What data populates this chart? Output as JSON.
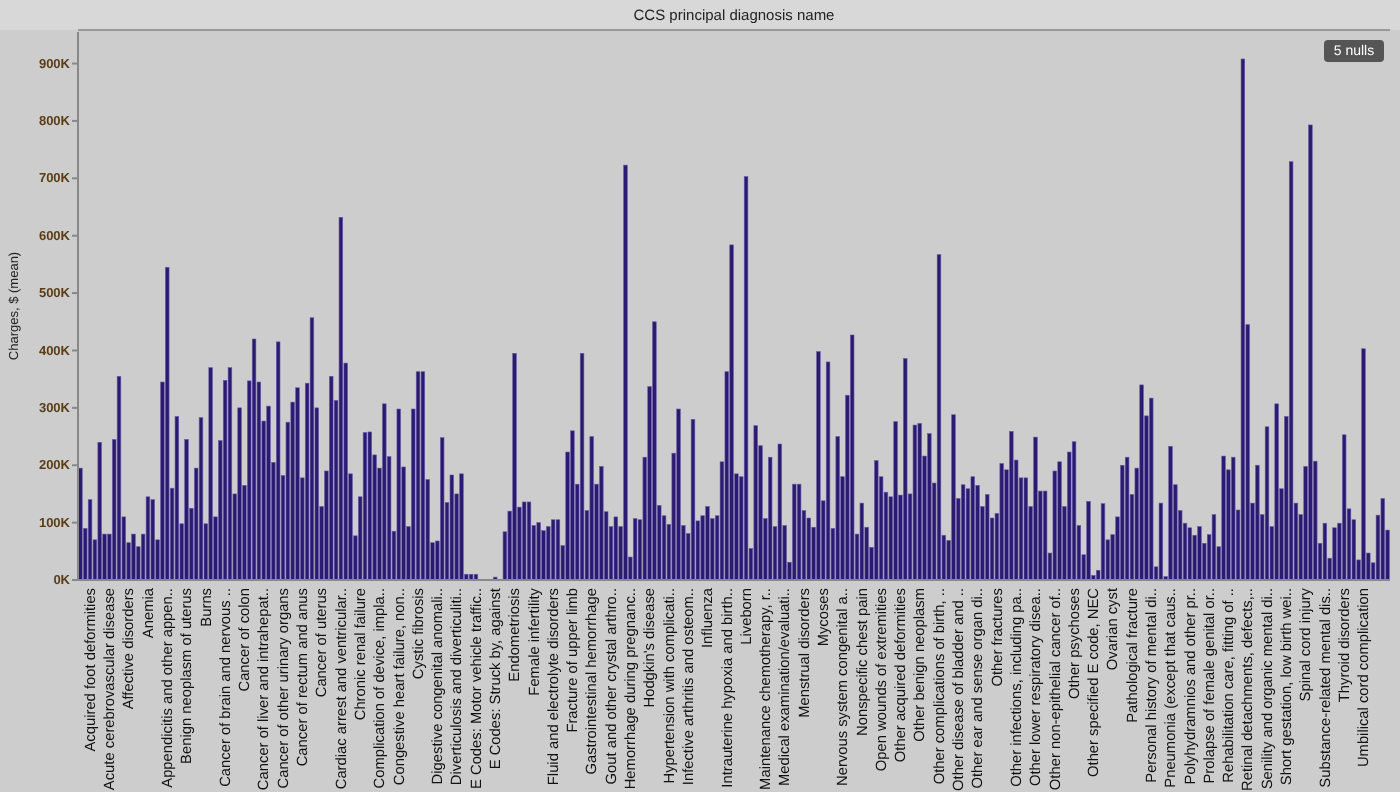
{
  "chart_data": {
    "type": "bar",
    "title": "CCS principal diagnosis name",
    "ylabel": "Charges, $ (mean)",
    "color": "#2b1a72",
    "grid": false,
    "ylim": [
      0,
      955000
    ],
    "yticks": [
      {
        "value": 0,
        "label": "0K"
      },
      {
        "value": 100000,
        "label": "100K"
      },
      {
        "value": 200000,
        "label": "200K"
      },
      {
        "value": 300000,
        "label": "300K"
      },
      {
        "value": 400000,
        "label": "400K"
      },
      {
        "value": 500000,
        "label": "500K"
      },
      {
        "value": 600000,
        "label": "600K"
      },
      {
        "value": 700000,
        "label": "700K"
      },
      {
        "value": 800000,
        "label": "800K"
      },
      {
        "value": 900000,
        "label": "900K"
      }
    ],
    "annotations": [
      "5 nulls"
    ],
    "categories": [
      null,
      null,
      "Acquired foot deformities",
      null,
      null,
      null,
      "Acute cerebrovascular disease",
      null,
      null,
      null,
      "Affective disorders",
      null,
      null,
      null,
      "Anemia",
      null,
      null,
      null,
      "Appendicitis and other appen..",
      null,
      null,
      null,
      "Benign neoplasm of uterus",
      null,
      null,
      null,
      "Burns",
      null,
      null,
      null,
      "Cancer of brain and nervous ..",
      null,
      null,
      null,
      "Cancer of colon",
      null,
      null,
      null,
      "Cancer of liver and intrahepat..",
      null,
      null,
      null,
      "Cancer of other urinary organs",
      null,
      null,
      null,
      "Cancer of rectum and anus",
      null,
      null,
      null,
      "Cancer of uterus",
      null,
      null,
      null,
      "Cardiac arrest and ventricular..",
      null,
      null,
      null,
      "Chronic renal failure",
      null,
      null,
      null,
      "Complication of device, impla..",
      null,
      null,
      null,
      "Congestive heart failure, non..",
      null,
      null,
      null,
      "Cystic fibrosis",
      null,
      null,
      null,
      "Digestive congenital anomali..",
      null,
      null,
      null,
      "Diverticulosis and diverticuliti..",
      null,
      null,
      null,
      "E Codes: Motor vehicle traffic..",
      null,
      null,
      null,
      "E Codes: Struck by, against",
      null,
      null,
      null,
      "Endometriosis",
      null,
      null,
      null,
      "Female infertility",
      null,
      null,
      null,
      "Fluid and electrolyte disorders",
      null,
      null,
      null,
      "Fracture of upper limb",
      null,
      null,
      null,
      "Gastrointestinal hemorrhage",
      null,
      null,
      null,
      "Gout and other crystal arthro..",
      null,
      null,
      null,
      "Hemorrhage during pregnanc..",
      null,
      null,
      null,
      "Hodgkin's disease",
      null,
      null,
      null,
      "Hypertension with complicati..",
      null,
      null,
      null,
      "Infective arthritis and osteom..",
      null,
      null,
      null,
      "Influenza",
      null,
      null,
      null,
      "Intrauterine hypoxia and birth..",
      null,
      null,
      null,
      "Liveborn",
      null,
      null,
      null,
      "Maintenance chemotherapy, r..",
      null,
      null,
      null,
      "Medical examination/evaluati..",
      null,
      null,
      null,
      "Menstrual disorders",
      null,
      null,
      null,
      "Mycoses",
      null,
      null,
      null,
      "Nervous system congenital a..",
      null,
      null,
      null,
      "Nonspecific chest pain",
      null,
      null,
      null,
      "Open wounds of extremities",
      null,
      null,
      null,
      "Other acquired deformities",
      null,
      null,
      null,
      "Other benign neoplasm",
      null,
      null,
      null,
      "Other complications of birth, ..",
      null,
      null,
      null,
      "Other disease of bladder and ..",
      null,
      null,
      null,
      "Other ear and sense organ di..",
      null,
      null,
      null,
      "Other fractures",
      null,
      null,
      null,
      "Other infections, including pa..",
      null,
      null,
      null,
      "Other lower respiratory disea..",
      null,
      null,
      null,
      "Other non-epithelial cancer of..",
      null,
      null,
      null,
      "Other psychoses",
      null,
      null,
      null,
      "Other specified E code, NEC",
      null,
      null,
      null,
      "Ovarian cyst",
      null,
      null,
      null,
      "Pathological fracture",
      null,
      null,
      null,
      "Personal history of mental di..",
      null,
      null,
      null,
      "Pneumonia (except that caus..",
      null,
      null,
      null,
      "Polyhydramnios and other pr..",
      null,
      null,
      null,
      "Prolapse of female genital or..",
      null,
      null,
      null,
      "Rehabilitation care, fitting of ..",
      null,
      null,
      null,
      "Retinal detachments, defects,..",
      null,
      null,
      null,
      "Senility and organic mental di..",
      null,
      null,
      null,
      "Short gestation, low birth wei..",
      null,
      null,
      null,
      "Spinal cord injury",
      null,
      null,
      null,
      "Substance-related mental dis..",
      null,
      null,
      null,
      "Thyroid disorders",
      null,
      null,
      null,
      "Umbilical cord complication",
      null,
      null,
      null,
      null,
      null
    ],
    "values": [
      195000,
      90000,
      140000,
      70000,
      240000,
      80000,
      80000,
      245000,
      355000,
      110000,
      65000,
      80000,
      58000,
      80000,
      145000,
      140000,
      70000,
      345000,
      545000,
      160000,
      285000,
      98000,
      245000,
      125000,
      195000,
      283000,
      98000,
      370000,
      110000,
      243000,
      348000,
      370000,
      150000,
      300000,
      165000,
      347000,
      420000,
      345000,
      277000,
      303000,
      205000,
      415000,
      182000,
      275000,
      310000,
      335000,
      178000,
      343000,
      457000,
      300000,
      128000,
      190000,
      355000,
      313000,
      632000,
      378000,
      185000,
      77000,
      145000,
      257000,
      258000,
      218000,
      195000,
      307000,
      215000,
      85000,
      298000,
      197000,
      93000,
      298000,
      363000,
      363000,
      175000,
      65000,
      68000,
      248000,
      135000,
      183000,
      150000,
      185000,
      10000,
      10000,
      10000,
      null,
      null,
      null,
      5000,
      null,
      84000,
      120000,
      395000,
      127000,
      136000,
      136000,
      95000,
      100000,
      86000,
      93000,
      105000,
      105000,
      60000,
      223000,
      260000,
      167000,
      395000,
      121000,
      250000,
      167000,
      198000,
      119000,
      93000,
      110000,
      93000,
      723000,
      40000,
      107000,
      105000,
      214000,
      337000,
      450000,
      130000,
      112000,
      97000,
      221000,
      298000,
      95000,
      81000,
      280000,
      103000,
      112000,
      128000,
      107000,
      112000,
      206000,
      363000,
      584000,
      185000,
      180000,
      703000,
      55000,
      269000,
      234000,
      107000,
      214000,
      93000,
      237000,
      95000,
      31000,
      167000,
      167000,
      121000,
      108000,
      92000,
      398000,
      138000,
      380000,
      90000,
      250000,
      180000,
      322000,
      427000,
      80000,
      134000,
      92000,
      57000,
      208000,
      180000,
      153000,
      145000,
      276000,
      148000,
      386000,
      150000,
      270000,
      273000,
      216000,
      255000,
      169000,
      567000,
      78000,
      69000,
      288000,
      142000,
      166000,
      159000,
      180000,
      165000,
      128000,
      149000,
      108000,
      116000,
      203000,
      192000,
      259000,
      209000,
      178000,
      178000,
      128000,
      249000,
      155000,
      155000,
      47000,
      190000,
      206000,
      128000,
      223000,
      241000,
      95000,
      44000,
      137000,
      8000,
      17000,
      133000,
      70000,
      79000,
      110000,
      200000,
      214000,
      149000,
      195000,
      340000,
      286000,
      317000,
      23000,
      134000,
      6000,
      233000,
      166000,
      121000,
      99000,
      91000,
      78000,
      93000,
      64000,
      79000,
      114000,
      58000,
      216000,
      192000,
      214000,
      122000,
      908000,
      445000,
      134000,
      200000,
      114000,
      267000,
      93000,
      307000,
      159000,
      285000,
      729000,
      134000,
      114000,
      198000,
      793000,
      207000,
      64000,
      99000,
      38000,
      91000,
      99000,
      253000,
      124000,
      105000,
      35000,
      403000,
      47000,
      30000,
      113000,
      142000,
      87000
    ]
  }
}
